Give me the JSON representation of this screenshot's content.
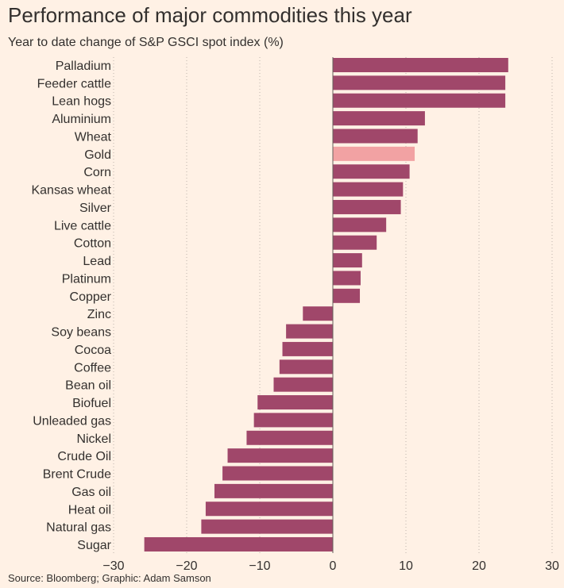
{
  "chart_data": {
    "type": "bar",
    "orientation": "horizontal",
    "title": "Performance of major commodities this year",
    "subtitle": "Year to date change of S&P GSCI spot index (%)",
    "source": "Source: Bloomberg; Graphic: Adam Samson",
    "xlim": [
      -30,
      30
    ],
    "xticks": [
      -30,
      -20,
      -10,
      0,
      10,
      20,
      30
    ],
    "grid": "vertical dotted",
    "colors": {
      "bar": "#a0476a",
      "highlight": "#f2a2a3",
      "background": "#fff1e5"
    },
    "highlight": "Gold",
    "categories": [
      "Palladium",
      "Feeder cattle",
      "Lean hogs",
      "Aluminium",
      "Wheat",
      "Gold",
      "Corn",
      "Kansas wheat",
      "Silver",
      "Live cattle",
      "Cotton",
      "Lead",
      "Platinum",
      "Copper",
      "Zinc",
      "Soy beans",
      "Cocoa",
      "Coffee",
      "Bean oil",
      "Biofuel",
      "Unleaded gas",
      "Nickel",
      "Crude Oil",
      "Brent Crude",
      "Gas oil",
      "Heat oil",
      "Natural gas",
      "Sugar"
    ],
    "values": [
      24.0,
      23.6,
      23.6,
      12.6,
      11.6,
      11.2,
      10.5,
      9.6,
      9.3,
      7.3,
      6.0,
      4.0,
      3.8,
      3.7,
      -4.1,
      -6.4,
      -6.9,
      -7.3,
      -8.1,
      -10.3,
      -10.8,
      -11.8,
      -14.4,
      -15.1,
      -16.2,
      -17.4,
      -18.0,
      -25.8
    ]
  }
}
